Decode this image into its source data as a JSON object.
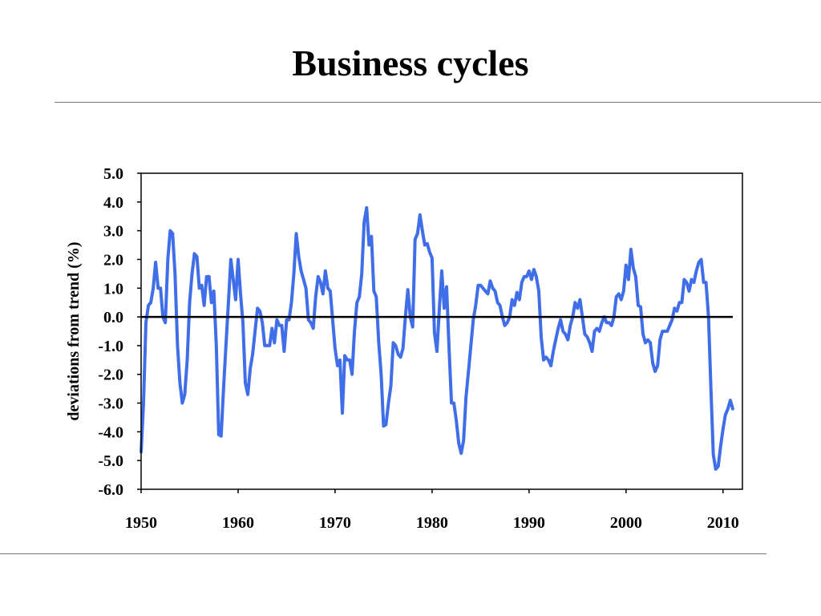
{
  "slide": {
    "title": "Business cycles"
  },
  "chart_data": {
    "type": "line",
    "title": "",
    "xlabel": "",
    "ylabel": "deviations from trend (%)",
    "xlim": [
      1950,
      2012
    ],
    "ylim": [
      -6.0,
      5.0
    ],
    "x_ticks": [
      1950,
      1960,
      1970,
      1980,
      1990,
      2000,
      2010
    ],
    "x_tick_labels": [
      "1950",
      "1960",
      "1970",
      "1980",
      "1990",
      "2000",
      "2010"
    ],
    "y_ticks": [
      5.0,
      4.0,
      3.0,
      2.0,
      1.0,
      0.0,
      -1.0,
      -2.0,
      -3.0,
      -4.0,
      -5.0,
      -6.0
    ],
    "y_tick_labels": [
      "5.0",
      "4.0",
      "3.0",
      "2.0",
      "1.0",
      "0.0",
      "-1.0",
      "-2.0",
      "-3.0",
      "-4.0",
      "-5.0",
      "-6.0"
    ],
    "grid": false,
    "reference_line": {
      "y": 0.0,
      "color": "#000000"
    },
    "series": [
      {
        "color": "#3f6ee8",
        "x": [
          1950.0,
          1950.25,
          1950.5,
          1950.75,
          1951.0,
          1951.25,
          1951.5,
          1951.75,
          1952.0,
          1952.25,
          1952.5,
          1952.75,
          1953.0,
          1953.25,
          1953.5,
          1953.75,
          1954.0,
          1954.25,
          1954.5,
          1954.75,
          1955.0,
          1955.25,
          1955.5,
          1955.75,
          1956.0,
          1956.25,
          1956.5,
          1956.75,
          1957.0,
          1957.25,
          1957.5,
          1957.75,
          1958.0,
          1958.25,
          1958.5,
          1958.75,
          1959.0,
          1959.25,
          1959.5,
          1959.75,
          1960.0,
          1960.25,
          1960.5,
          1960.75,
          1961.0,
          1961.25,
          1961.5,
          1961.75,
          1962.0,
          1962.25,
          1962.5,
          1962.75,
          1963.0,
          1963.25,
          1963.5,
          1963.75,
          1964.0,
          1964.25,
          1964.5,
          1964.75,
          1965.0,
          1965.25,
          1965.5,
          1965.75,
          1966.0,
          1966.25,
          1966.5,
          1966.75,
          1967.0,
          1967.25,
          1967.5,
          1967.75,
          1968.0,
          1968.25,
          1968.5,
          1968.75,
          1969.0,
          1969.25,
          1969.5,
          1969.75,
          1970.0,
          1970.25,
          1970.5,
          1970.75,
          1971.0,
          1971.25,
          1971.5,
          1971.75,
          1972.0,
          1972.25,
          1972.5,
          1972.75,
          1973.0,
          1973.25,
          1973.5,
          1973.75,
          1974.0,
          1974.25,
          1974.5,
          1974.75,
          1975.0,
          1975.25,
          1975.5,
          1975.75,
          1976.0,
          1976.25,
          1976.5,
          1976.75,
          1977.0,
          1977.25,
          1977.5,
          1977.75,
          1978.0,
          1978.25,
          1978.5,
          1978.75,
          1979.0,
          1979.25,
          1979.5,
          1979.75,
          1980.0,
          1980.25,
          1980.5,
          1980.75,
          1981.0,
          1981.25,
          1981.5,
          1981.75,
          1982.0,
          1982.25,
          1982.5,
          1982.75,
          1983.0,
          1983.25,
          1983.5,
          1983.75,
          1984.0,
          1984.25,
          1984.5,
          1984.75,
          1985.0,
          1985.25,
          1985.5,
          1985.75,
          1986.0,
          1986.25,
          1986.5,
          1986.75,
          1987.0,
          1987.25,
          1987.5,
          1987.75,
          1988.0,
          1988.25,
          1988.5,
          1988.75,
          1989.0,
          1989.25,
          1989.5,
          1989.75,
          1990.0,
          1990.25,
          1990.5,
          1990.75,
          1991.0,
          1991.25,
          1991.5,
          1991.75,
          1992.0,
          1992.25,
          1992.5,
          1992.75,
          1993.0,
          1993.25,
          1993.5,
          1993.75,
          1994.0,
          1994.25,
          1994.5,
          1994.75,
          1995.0,
          1995.25,
          1995.5,
          1995.75,
          1996.0,
          1996.25,
          1996.5,
          1996.75,
          1997.0,
          1997.25,
          1997.5,
          1997.75,
          1998.0,
          1998.25,
          1998.5,
          1998.75,
          1999.0,
          1999.25,
          1999.5,
          1999.75,
          2000.0,
          2000.25,
          2000.5,
          2000.75,
          2001.0,
          2001.25,
          2001.5,
          2001.75,
          2002.0,
          2002.25,
          2002.5,
          2002.75,
          2003.0,
          2003.25,
          2003.5,
          2003.75,
          2004.0,
          2004.25,
          2004.5,
          2004.75,
          2005.0,
          2005.25,
          2005.5,
          2005.75,
          2006.0,
          2006.25,
          2006.5,
          2006.75,
          2007.0,
          2007.25,
          2007.5,
          2007.75,
          2008.0,
          2008.25,
          2008.5,
          2008.75,
          2009.0,
          2009.25,
          2009.5,
          2009.75,
          2010.0,
          2010.25,
          2010.5,
          2010.75,
          2011.0
        ],
        "values": [
          -4.7,
          -3.0,
          -0.2,
          0.4,
          0.5,
          1.0,
          1.9,
          1.0,
          1.0,
          0.0,
          -0.2,
          2.0,
          3.0,
          2.9,
          1.5,
          -1.0,
          -2.3,
          -3.0,
          -2.7,
          -1.5,
          0.5,
          1.5,
          2.2,
          2.1,
          1.0,
          1.1,
          0.4,
          1.4,
          1.4,
          0.5,
          0.9,
          -1.0,
          -4.1,
          -4.15,
          -2.5,
          -1.0,
          0.5,
          2.0,
          1.3,
          0.6,
          2.0,
          0.8,
          -0.2,
          -2.3,
          -2.7,
          -1.8,
          -1.3,
          -0.5,
          0.3,
          0.2,
          -0.2,
          -1.0,
          -1.0,
          -1.0,
          -0.4,
          -0.9,
          -0.1,
          -0.3,
          -0.3,
          -1.2,
          -0.1,
          -0.1,
          0.5,
          1.5,
          2.9,
          2.1,
          1.6,
          1.3,
          1.0,
          -0.1,
          -0.2,
          -0.4,
          0.7,
          1.4,
          1.2,
          0.8,
          1.6,
          1.0,
          0.9,
          -0.1,
          -1.1,
          -1.7,
          -1.5,
          -3.35,
          -1.35,
          -1.5,
          -1.5,
          -2.0,
          -0.5,
          0.5,
          0.7,
          1.5,
          3.3,
          3.8,
          2.5,
          2.8,
          0.9,
          0.7,
          -0.9,
          -2.0,
          -3.8,
          -3.75,
          -3.0,
          -2.4,
          -0.9,
          -1.0,
          -1.3,
          -1.4,
          -1.1,
          0.0,
          0.95,
          0.0,
          -0.35,
          2.7,
          2.9,
          3.55,
          3.0,
          2.5,
          2.55,
          2.25,
          2.05,
          -0.55,
          -1.2,
          0.3,
          1.6,
          0.3,
          1.05,
          -1.1,
          -3.0,
          -3.0,
          -3.6,
          -4.4,
          -4.75,
          -4.3,
          -2.8,
          -1.9,
          -1.0,
          -0.1,
          0.4,
          1.1,
          1.1,
          1.0,
          0.9,
          0.8,
          1.25,
          1.0,
          0.9,
          0.5,
          0.4,
          0.0,
          -0.3,
          -0.2,
          0.0,
          0.6,
          0.4,
          0.85,
          0.6,
          1.2,
          1.4,
          1.4,
          1.6,
          1.3,
          1.65,
          1.4,
          0.9,
          -0.7,
          -1.5,
          -1.4,
          -1.5,
          -1.7,
          -1.2,
          -0.8,
          -0.4,
          -0.1,
          -0.5,
          -0.6,
          -0.8,
          -0.3,
          0.0,
          0.5,
          0.3,
          0.6,
          0.0,
          -0.6,
          -0.7,
          -0.9,
          -1.2,
          -0.5,
          -0.4,
          -0.5,
          -0.2,
          0.0,
          -0.2,
          -0.2,
          -0.3,
          0.0,
          0.7,
          0.8,
          0.6,
          0.9,
          1.8,
          1.3,
          2.35,
          1.7,
          1.4,
          0.4,
          0.35,
          -0.6,
          -0.9,
          -0.8,
          -0.9,
          -1.6,
          -1.9,
          -1.7,
          -0.8,
          -0.5,
          -0.5,
          -0.5,
          -0.3,
          -0.1,
          0.3,
          0.2,
          0.5,
          0.5,
          1.3,
          1.2,
          0.9,
          1.3,
          1.2,
          1.6,
          1.9,
          2.0,
          1.2,
          1.2,
          0.0,
          -2.5,
          -4.8,
          -5.3,
          -5.2,
          -4.5,
          -3.9,
          -3.4,
          -3.2,
          -2.9,
          -3.2
        ]
      }
    ]
  }
}
